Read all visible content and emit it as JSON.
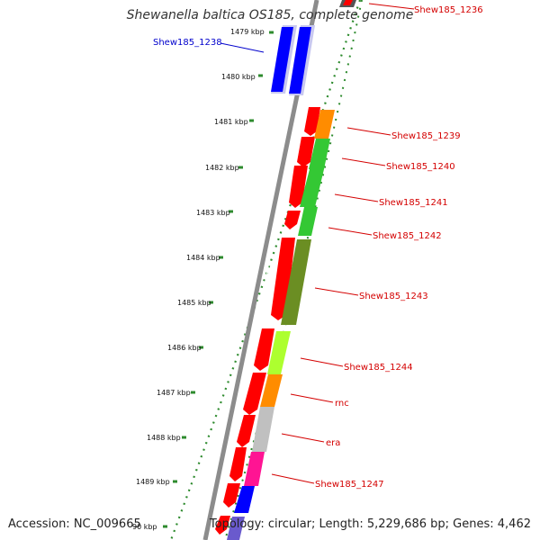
{
  "title": "Shewanella baltica OS185, complete genome",
  "footer": {
    "accession": "Accession: NC_009665",
    "stats": "Topology: circular; Length: 5,229,686 bp; Genes: 4,462"
  },
  "colors": {
    "backbone": "#8c8c8c",
    "tick": "#2e8b2e",
    "label_red": "#d40000",
    "label_blue": "#0000cc",
    "gene_red": "#ff0000",
    "gene_blue": "#0000ff"
  },
  "ruler_labels": [
    "1479 kbp",
    "1480 kbp",
    "1481 kbp",
    "1482 kbp",
    "1483 kbp",
    "1484 kbp",
    "1485 kbp",
    "1486 kbp",
    "1487 kbp",
    "1488 kbp",
    "1489 kbp",
    "90 kbp"
  ],
  "gene_labels": [
    "Shew185_1236",
    "Shew185_1238",
    "Shew185_1239",
    "Shew185_1240",
    "Shew185_1241",
    "Shew185_1242",
    "Shew185_1243",
    "Shew185_1244",
    "rnc",
    "era",
    "Shew185_1247"
  ]
}
